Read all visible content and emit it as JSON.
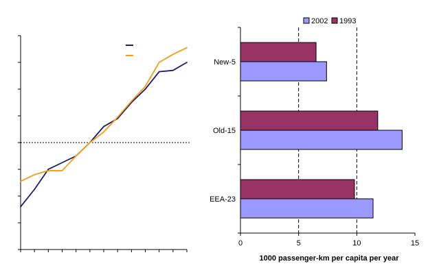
{
  "chart_data": [
    {
      "type": "line",
      "title": "",
      "xlabel": "",
      "ylabel": "",
      "tick_labels": [],
      "x": [
        0,
        1,
        2,
        3,
        4,
        5,
        6,
        7,
        8,
        9,
        10,
        11,
        12
      ],
      "ylim": [
        -8,
        8
      ],
      "reference_line": 0,
      "grid": false,
      "legend_position": "top-right",
      "series": [
        {
          "color": "#1a1a6e",
          "values": [
            -4.8,
            -3.5,
            -2.0,
            -1.5,
            -1.0,
            0.0,
            1.2,
            1.8,
            3.0,
            4.0,
            5.3,
            5.4,
            6.0
          ]
        },
        {
          "color": "#f39c12",
          "values": [
            -2.9,
            -2.4,
            -2.1,
            -2.1,
            -1.0,
            0.0,
            0.8,
            1.9,
            3.1,
            4.2,
            6.0,
            6.6,
            7.1
          ]
        }
      ]
    },
    {
      "type": "bar",
      "orientation": "horizontal",
      "title": "",
      "xlabel": "1000 passenger-km per capita per year",
      "ylabel": "",
      "categories": [
        "New-5",
        "Old-15",
        "EEA-23"
      ],
      "xlim": [
        0,
        15
      ],
      "x_ticks": [
        "0",
        "5",
        "10",
        "15"
      ],
      "grid": "dashed vertical",
      "legend_position": "top",
      "series": [
        {
          "name": "2002",
          "color": "#9999ff",
          "values": [
            7.4,
            13.9,
            11.4
          ]
        },
        {
          "name": "1993",
          "color": "#993366",
          "values": [
            6.5,
            11.8,
            9.8
          ]
        }
      ]
    }
  ]
}
